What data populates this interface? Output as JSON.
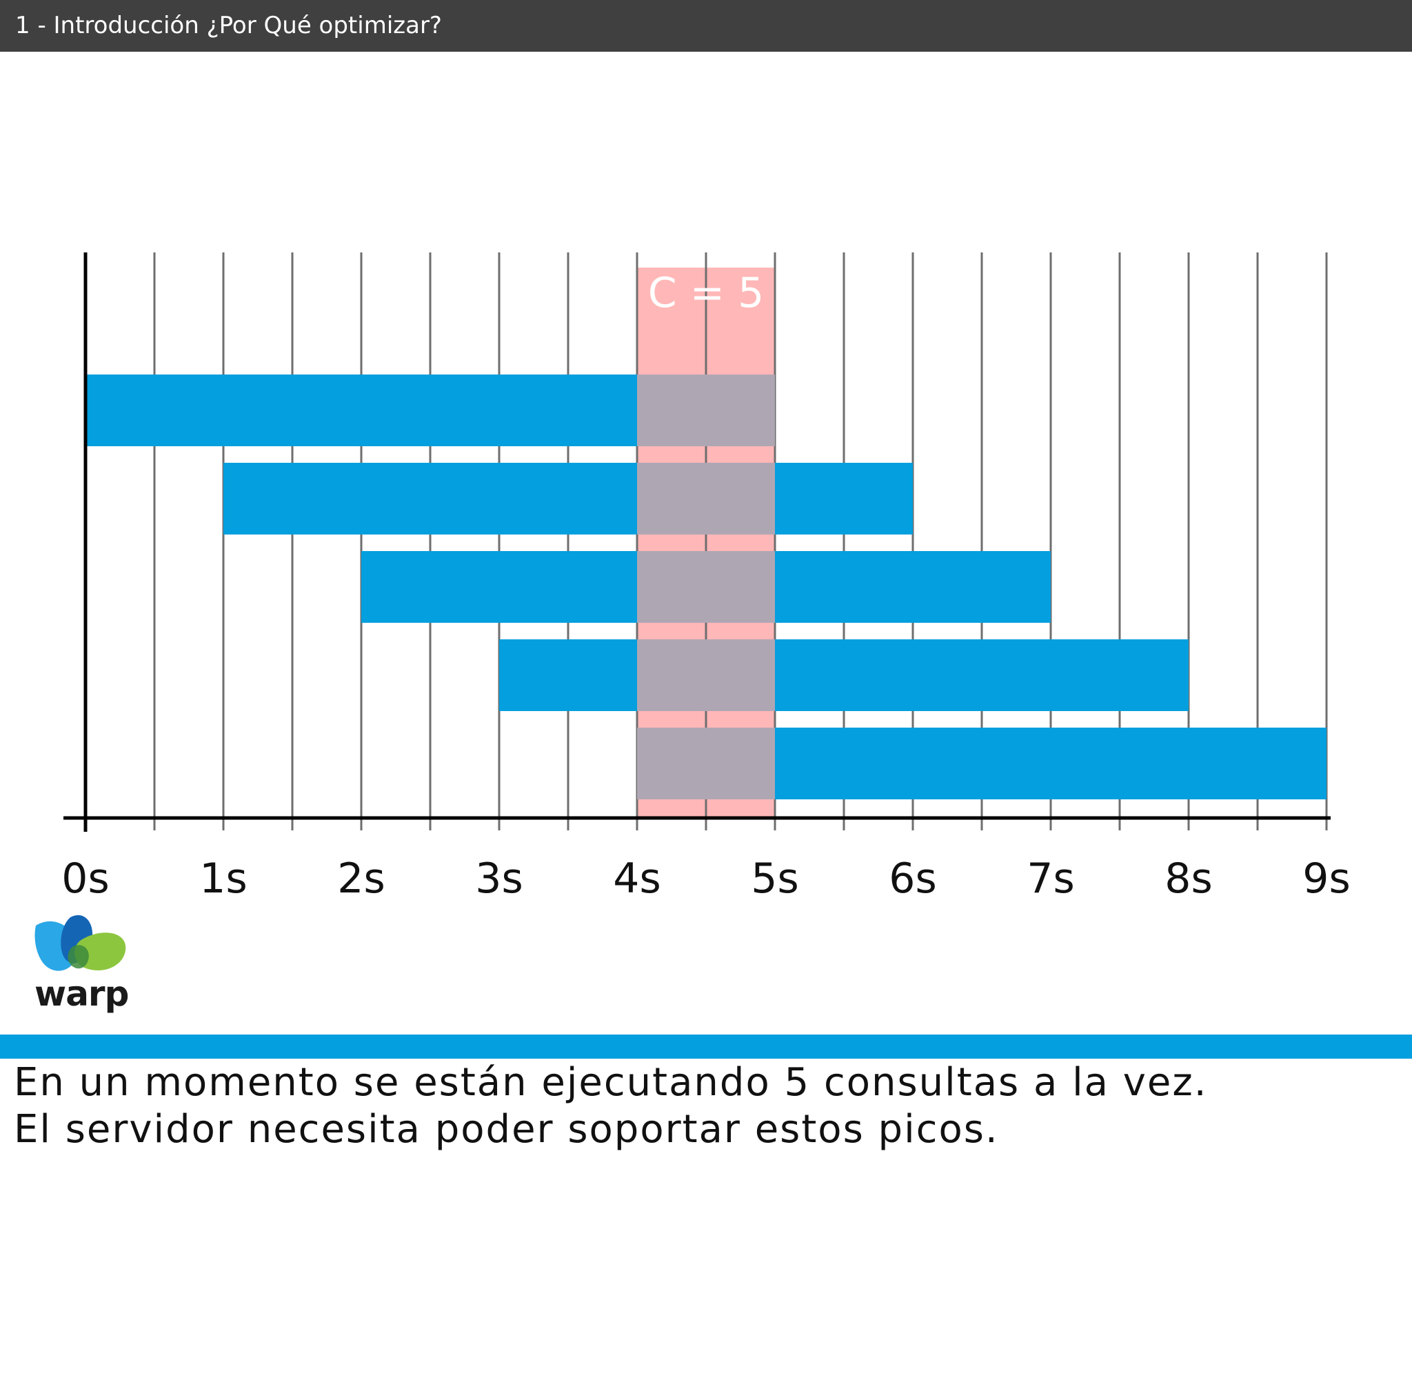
{
  "header": {
    "title": "1 - Introducción ¿Por Qué optimizar?"
  },
  "chart_data": {
    "type": "bar",
    "orientation": "horizontal-gantt",
    "x_ticks": [
      "0s",
      "1s",
      "2s",
      "3s",
      "4s",
      "5s",
      "6s",
      "7s",
      "8s",
      "9s"
    ],
    "xlim": [
      0,
      9
    ],
    "grid": true,
    "bars": [
      {
        "start": 0,
        "end": 5
      },
      {
        "start": 1,
        "end": 6
      },
      {
        "start": 2,
        "end": 7
      },
      {
        "start": 3,
        "end": 8
      },
      {
        "start": 4,
        "end": 9
      }
    ],
    "highlight": {
      "start": 4,
      "end": 5,
      "label": "C = 5"
    },
    "colors": {
      "bar": "#049fde",
      "highlight": "#ffb7b7",
      "overlap": "#afa6b4",
      "grid": "#6e6e6e",
      "axis": "#000000"
    }
  },
  "logo": {
    "text": "warp"
  },
  "caption": {
    "line1": "En un momento se están ejecutando 5 consultas a la vez.",
    "line2": "El servidor necesita poder soportar estos picos."
  },
  "colors": {
    "titlebar": "#404040",
    "divider": "#049fde"
  }
}
